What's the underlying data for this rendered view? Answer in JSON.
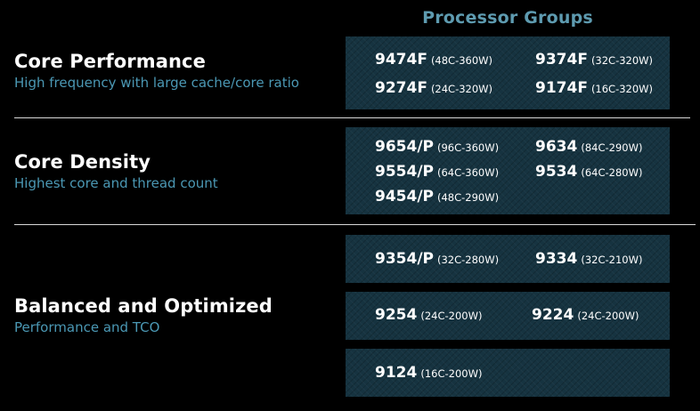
{
  "header": {
    "title": "Processor Groups"
  },
  "categories": [
    {
      "title": "Core Performance",
      "subtitle": "High frequency with large cache/core ratio"
    },
    {
      "title": "Core Density",
      "subtitle": "Highest core and thread count"
    },
    {
      "title": "Balanced and Optimized",
      "subtitle": "Performance and TCO"
    }
  ],
  "groups": {
    "performance": [
      {
        "model": "9474F",
        "spec": "(48C-360W)"
      },
      {
        "model": "9374F",
        "spec": "(32C-320W)"
      },
      {
        "model": "9274F",
        "spec": "(24C-320W)"
      },
      {
        "model": "9174F",
        "spec": "(16C-320W)"
      }
    ],
    "density": [
      {
        "model": "9654/P",
        "spec": "(96C-360W)"
      },
      {
        "model": "9634",
        "spec": "(84C-290W)"
      },
      {
        "model": "9554/P",
        "spec": "(64C-360W)"
      },
      {
        "model": "9534",
        "spec": "(64C-280W)"
      },
      {
        "model": "9454/P",
        "spec": "(48C-290W)"
      }
    ],
    "balanced": [
      {
        "model": "9354/P",
        "spec": "(32C-280W)"
      },
      {
        "model": "9334",
        "spec": "(32C-210W)"
      },
      {
        "model": "9254",
        "spec": "(24C-200W)"
      },
      {
        "model": "9224",
        "spec": "(24C-200W)"
      },
      {
        "model": "9124",
        "spec": "(16C-200W)"
      }
    ]
  }
}
